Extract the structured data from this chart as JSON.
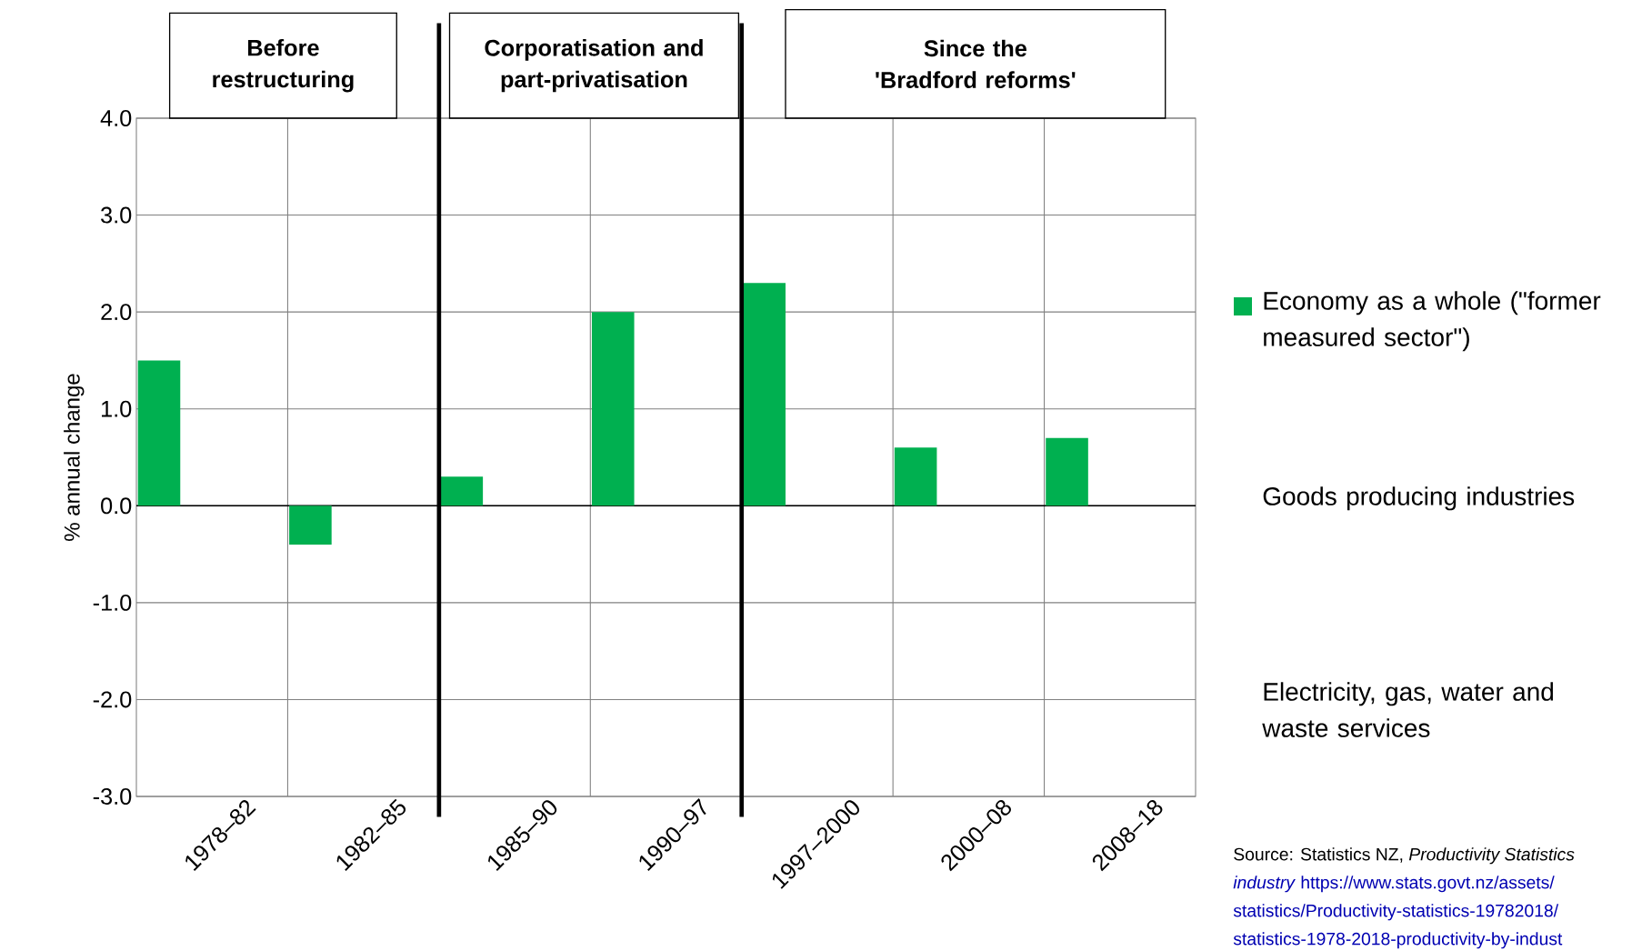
{
  "chart_data": {
    "type": "bar",
    "ylabel": "% annual change",
    "categories": [
      "1978–82",
      "1982–85",
      "1985–90",
      "1990–97",
      "1997–2000",
      "2000–08",
      "2008–18"
    ],
    "series": [
      {
        "name": "Economy as a whole (\"former measured sector\")",
        "color": "#00b050",
        "values": [
          1.5,
          -0.4,
          0.3,
          2.0,
          2.3,
          0.6,
          0.7
        ]
      }
    ],
    "ylim": [
      -3,
      4
    ],
    "yticks": [
      {
        "value": -3,
        "label": "-3.0"
      },
      {
        "value": -2,
        "label": "-2.0"
      },
      {
        "value": -1,
        "label": "-1.0"
      },
      {
        "value": 0,
        "label": "0.0"
      },
      {
        "value": 1,
        "label": "1.0"
      },
      {
        "value": 2,
        "label": "2.0"
      },
      {
        "value": 3,
        "label": "3.0"
      },
      {
        "value": 4,
        "label": "4.0"
      }
    ],
    "grid": true,
    "legend": "right",
    "annotations": [
      "Before restructuring",
      "Corporatisation and part-privatisation",
      "Since the 'Bradford reforms'",
      "Goods producing industries",
      "Electricity, gas, water and waste services",
      "Source: Statistics NZ, *Productivity Statistics*",
      "*industry* https://www.stats.govt.nz/assets/",
      "statistics/Productivity-statistics-19782018/",
      "statistics-1978-2018-productivity-by-indust"
    ]
  }
}
